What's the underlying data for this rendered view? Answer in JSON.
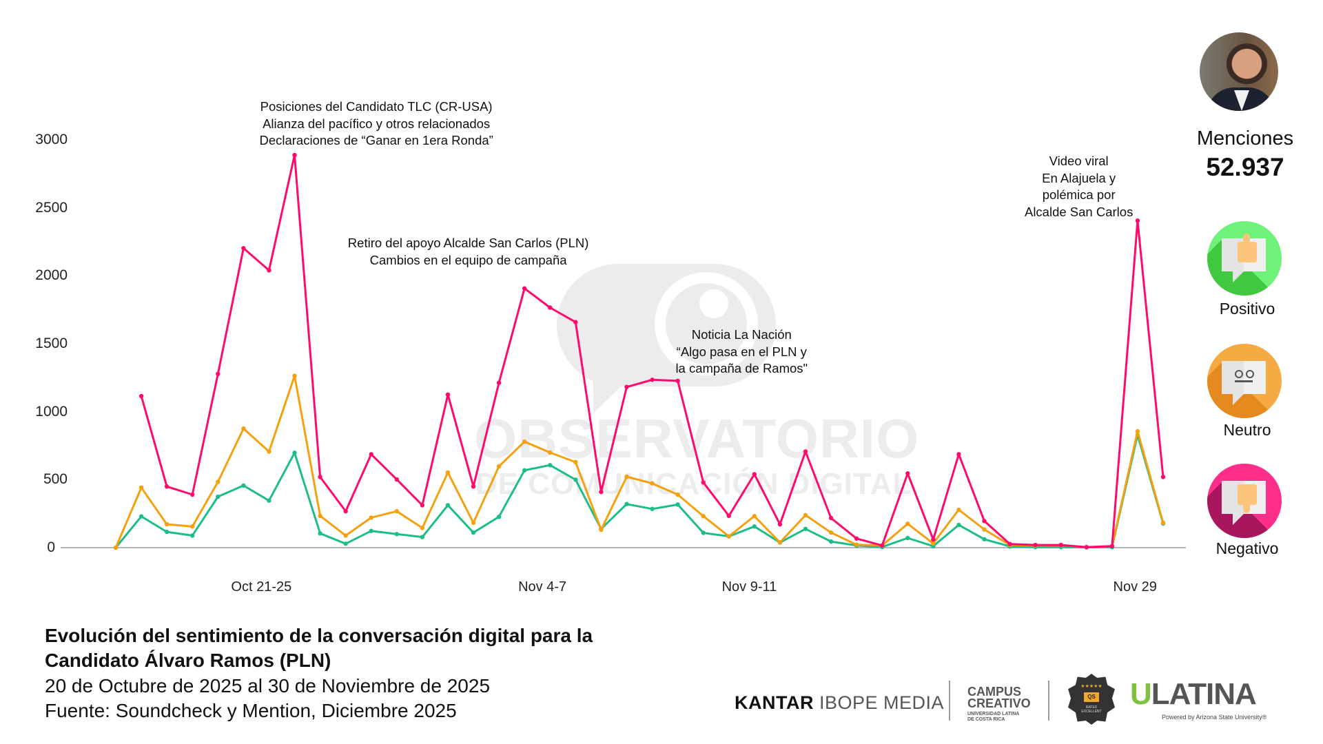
{
  "chart_data": {
    "type": "line",
    "title": "",
    "xlabel": "",
    "ylabel": "",
    "ylim": [
      0,
      3000
    ],
    "yticks": [
      0,
      500,
      1000,
      1500,
      2000,
      2500,
      3000
    ],
    "grid": false,
    "x_index_range": [
      0,
      41
    ],
    "xticks": [
      {
        "label": "Oct 21-25",
        "at": 5.7
      },
      {
        "label": "Nov 4-7",
        "at": 16.7
      },
      {
        "label": "Nov 9-11",
        "at": 24.8
      },
      {
        "label": "Nov 29",
        "at": 39.9
      }
    ],
    "series": [
      {
        "key": "negativo",
        "color": "#ff0a6c",
        "values": [
          null,
          1115,
          450,
          390,
          1278,
          2203,
          2040,
          2888,
          520,
          268,
          687,
          502,
          312,
          1126,
          450,
          1213,
          1907,
          1766,
          1659,
          410,
          1182,
          1235,
          1227,
          480,
          234,
          540,
          172,
          707,
          218,
          67,
          16,
          546,
          60,
          687,
          196,
          27,
          20,
          20,
          4,
          11,
          2406,
          520
        ]
      },
      {
        "key": "neutro",
        "color": "#f5a00f",
        "values": [
          0,
          442,
          172,
          156,
          484,
          876,
          707,
          1264,
          234,
          89,
          221,
          268,
          145,
          553,
          183,
          598,
          780,
          700,
          629,
          132,
          522,
          473,
          390,
          232,
          83,
          232,
          38,
          239,
          111,
          22,
          16,
          176,
          31,
          279,
          134,
          20,
          16,
          18,
          4,
          11,
          856,
          183
        ]
      },
      {
        "key": "positivo",
        "color": "#1dbd8a",
        "values": [
          0,
          230,
          116,
          89,
          375,
          457,
          346,
          698,
          105,
          29,
          123,
          100,
          78,
          312,
          111,
          227,
          569,
          607,
          500,
          138,
          321,
          285,
          317,
          109,
          83,
          156,
          38,
          138,
          45,
          16,
          5,
          71,
          11,
          167,
          62,
          9,
          4,
          4,
          2,
          4,
          830,
          178
        ]
      }
    ],
    "annotations": [
      {
        "at": 10.2,
        "lines": [
          "Posiciones del Candidato TLC (CR-USA)",
          "Alianza del pacífico y otros relacionados",
          "Declaraciones de “Ganar en 1era Ronda”"
        ]
      },
      {
        "at": 13.8,
        "lines": [
          "Retiro del apoyo Alcalde San Carlos (PLN)",
          "Cambios en el equipo de campaña"
        ]
      },
      {
        "at": 24.5,
        "lines": [
          "Noticia La Nación",
          "“Algo pasa en el PLN y",
          "la campaña de Ramos\""
        ]
      },
      {
        "at": 37.7,
        "lines": [
          "Video viral",
          "En Alajuela y",
          "polémica por",
          "Alcalde San Carlos"
        ]
      }
    ]
  },
  "watermark": {
    "line1": "OBSERVATORIO",
    "line2": "DE COMUNICACIÓN DIGITAL"
  },
  "side": {
    "mentions_label": "Menciones",
    "mentions_value": "52.937",
    "legend": [
      {
        "label": "Positivo",
        "icon": "thumbs-up-icon",
        "color": "#6ef27a",
        "shade": "#3fc840"
      },
      {
        "label": "Neutro",
        "icon": "neutral-face-icon",
        "color": "#f5aa44",
        "shade": "#e58a1e"
      },
      {
        "label": "Negativo",
        "icon": "thumbs-down-icon",
        "color": "#ff2e8a",
        "shade": "#a8165e"
      }
    ]
  },
  "footer": {
    "title_line1": "Evolución del sentimiento de la conversación digital para la",
    "title_line2": "Candidato Álvaro Ramos (PLN)",
    "date_range": "20 de Octubre de 2025 al 30 de Noviembre de 2025",
    "source": "Fuente: Soundcheck y Mention, Diciembre 2025"
  },
  "logos": {
    "kantar_bold": "KANTAR",
    "kantar_rest": "IBOPE MEDIA",
    "campus_line1": "CAMPUS",
    "campus_line2": "CREATIVO",
    "campus_sub1": "UNIVERSIDAD LATINA",
    "campus_sub2": "DE COSTA RICA",
    "badge_stars": "★★★★★",
    "badge_qs": "QS",
    "badge_text1": "RATED",
    "badge_text2": "EXCELLENT",
    "ulatina_u": "U",
    "ulatina_rest": "LATINA",
    "ulatina_sub": "Powered by Arizona State University®"
  }
}
